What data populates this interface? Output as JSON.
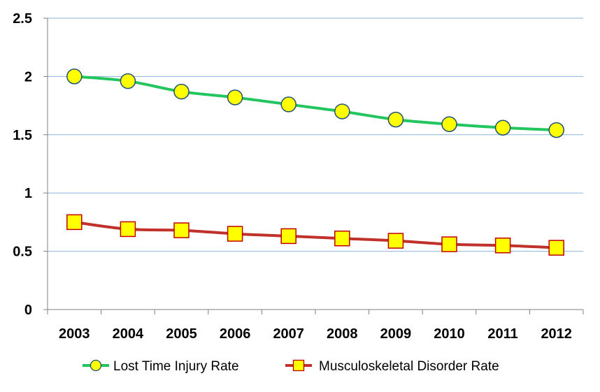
{
  "chart_data": {
    "type": "line",
    "title": "",
    "xlabel": "",
    "ylabel": "",
    "categories": [
      "2003",
      "2004",
      "2005",
      "2006",
      "2007",
      "2008",
      "2009",
      "2010",
      "2011",
      "2012"
    ],
    "ylim": [
      0,
      2.5
    ],
    "yticks": [
      "0",
      "0.5",
      "1",
      "1.5",
      "2",
      "2.5"
    ],
    "grid": true,
    "legend_position": "bottom",
    "series": [
      {
        "name": "Lost Time Injury Rate",
        "values": [
          2.0,
          1.96,
          1.87,
          1.82,
          1.76,
          1.7,
          1.63,
          1.59,
          1.56,
          1.54
        ],
        "line_color": "#22c55e",
        "marker": "circle",
        "marker_fill": "#ffff00",
        "marker_stroke": "#1f4e79"
      },
      {
        "name": "Musculoskeletal Disorder Rate",
        "values": [
          0.75,
          0.69,
          0.68,
          0.65,
          0.63,
          0.61,
          0.59,
          0.56,
          0.55,
          0.53
        ],
        "line_color": "#c0312b",
        "marker": "square",
        "marker_fill": "#ffff00",
        "marker_stroke": "#c00000"
      }
    ]
  },
  "colors": {
    "gridline": "#8db3d9",
    "axis": "#808080"
  }
}
